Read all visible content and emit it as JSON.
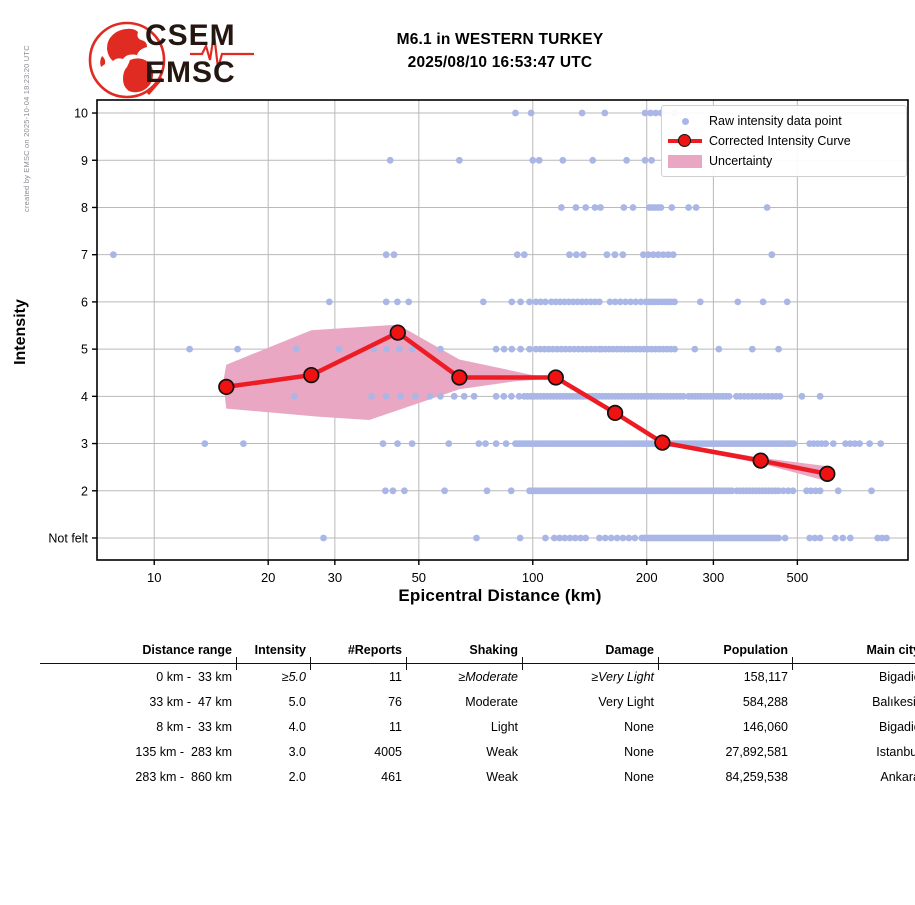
{
  "meta": {
    "created_by": "created by EMSC on 2025-10-04 18:23:20 UTC"
  },
  "logo": {
    "line1": "CSEM",
    "line2": "EMSC"
  },
  "title": {
    "line1": "M6.1 in WESTERN TURKEY",
    "line2": "2025/08/10 16:53:47 UTC"
  },
  "legend": {
    "raw": "Raw intensity data point",
    "curve": "Corrected Intensity Curve",
    "uncertainty": "Uncertainty"
  },
  "axes": {
    "ylabel": "Intensity",
    "xlabel": "Epicentral Distance (km)"
  },
  "chart_data": {
    "type": "scatter",
    "title": "M6.1 in WESTERN TURKEY 2025/08/10 16:53:47 UTC",
    "xlabel": "Epicentral Distance (km)",
    "ylabel": "Intensity",
    "x_scale": "log",
    "grid": true,
    "legend_position": "upper right",
    "x_range": [
      7.06,
      980
    ],
    "y_range": [
      0.534,
      10.276
    ],
    "x_ticks": [
      10,
      20,
      30,
      50,
      100,
      200,
      300,
      500
    ],
    "y_ticks": [
      {
        "value": 10,
        "label": "10"
      },
      {
        "value": 9,
        "label": "9"
      },
      {
        "value": 8,
        "label": "8"
      },
      {
        "value": 7,
        "label": "7"
      },
      {
        "value": 6,
        "label": "6"
      },
      {
        "value": 5,
        "label": "5"
      },
      {
        "value": 4,
        "label": "4"
      },
      {
        "value": 3,
        "label": "3"
      },
      {
        "value": 2,
        "label": "2"
      },
      {
        "value": 1,
        "label": "Not felt"
      }
    ],
    "colors": {
      "raw": "#aab7e6",
      "curve": "#ed1c24",
      "marker": "#ee1212",
      "band": "#e9a7c3",
      "grid": "#b9b9b9"
    },
    "corrected_curve": [
      [
        15.5,
        4.2
      ],
      [
        26,
        4.45
      ],
      [
        44,
        5.35
      ],
      [
        64,
        4.4
      ],
      [
        115,
        4.4
      ],
      [
        165,
        3.65
      ],
      [
        220,
        3.02
      ],
      [
        400,
        2.64
      ],
      [
        600,
        2.36
      ]
    ],
    "uncertainty_upper": [
      [
        15.2,
        4.3
      ],
      [
        15.5,
        4.67
      ],
      [
        26,
        5.4
      ],
      [
        44,
        5.52
      ],
      [
        64,
        4.78
      ],
      [
        100,
        4.45
      ],
      [
        115,
        4.42
      ],
      [
        165,
        3.7
      ],
      [
        220,
        3.06
      ],
      [
        400,
        2.7
      ],
      [
        600,
        2.52
      ]
    ],
    "uncertainty_lower": [
      [
        15.2,
        4.3
      ],
      [
        15.5,
        3.74
      ],
      [
        27,
        3.57
      ],
      [
        37,
        3.5
      ],
      [
        64,
        4.15
      ],
      [
        90,
        4.32
      ],
      [
        115,
        4.38
      ],
      [
        165,
        3.6
      ],
      [
        220,
        2.98
      ],
      [
        400,
        2.58
      ],
      [
        600,
        2.2
      ]
    ],
    "raw_points": [
      {
        "intensity": 10,
        "segments": [
          [
            90,
            90,
            1
          ],
          [
            99,
            99,
            1
          ],
          [
            135,
            135,
            1
          ],
          [
            155,
            155,
            1
          ],
          [
            198,
            218,
            4
          ],
          [
            237,
            237,
            1
          ]
        ]
      },
      {
        "intensity": 9,
        "segments": [
          [
            42,
            42,
            1
          ],
          [
            64,
            64,
            1
          ],
          [
            100,
            104,
            2
          ],
          [
            120,
            120,
            1
          ],
          [
            144,
            144,
            1
          ],
          [
            177,
            177,
            1
          ],
          [
            198,
            206,
            2
          ]
        ]
      },
      {
        "intensity": 8,
        "segments": [
          [
            119,
            119,
            1
          ],
          [
            130,
            130,
            1
          ],
          [
            138,
            138,
            1
          ],
          [
            146,
            151,
            2
          ],
          [
            174,
            174,
            1
          ],
          [
            184,
            184,
            1
          ],
          [
            203,
            218,
            5
          ],
          [
            233,
            233,
            1
          ],
          [
            258,
            258,
            1
          ],
          [
            270,
            270,
            1
          ],
          [
            416,
            416,
            1
          ]
        ]
      },
      {
        "intensity": 7,
        "segments": [
          [
            7.8,
            7.8,
            1
          ],
          [
            41,
            43,
            2
          ],
          [
            91,
            95,
            2
          ],
          [
            125,
            136,
            3
          ],
          [
            157,
            173,
            3
          ],
          [
            196,
            235,
            7
          ],
          [
            428,
            428,
            1
          ]
        ]
      },
      {
        "intensity": 6,
        "segments": [
          [
            29,
            29,
            1
          ],
          [
            41,
            47,
            3
          ],
          [
            74,
            74,
            1
          ],
          [
            88,
            98,
            3
          ],
          [
            102,
            108,
            3
          ],
          [
            112,
            150,
            12
          ],
          [
            160,
            193,
            7
          ],
          [
            199,
            237,
            10
          ],
          [
            277,
            277,
            1
          ],
          [
            348,
            348,
            1
          ],
          [
            406,
            406,
            1
          ],
          [
            470,
            470,
            1
          ]
        ]
      },
      {
        "intensity": 5,
        "segments": [
          [
            12.4,
            12.4,
            1
          ],
          [
            16.6,
            16.6,
            1
          ],
          [
            23.7,
            23.7,
            1
          ],
          [
            30.8,
            30.8,
            1
          ],
          [
            38,
            48,
            4
          ],
          [
            57,
            57,
            1
          ],
          [
            80,
            84,
            2
          ],
          [
            88,
            98,
            3
          ],
          [
            102,
            150,
            16
          ],
          [
            152,
            237,
            20
          ],
          [
            268,
            268,
            1
          ],
          [
            310,
            310,
            1
          ],
          [
            380,
            380,
            1
          ],
          [
            446,
            446,
            1
          ]
        ]
      },
      {
        "intensity": 4,
        "segments": [
          [
            23.5,
            23.5,
            1
          ],
          [
            37.5,
            53.5,
            5
          ],
          [
            57,
            57,
            1
          ],
          [
            62,
            70,
            3
          ],
          [
            80,
            92,
            4
          ],
          [
            95,
            250,
            50
          ],
          [
            258,
            330,
            14
          ],
          [
            345,
            450,
            12
          ],
          [
            514,
            514,
            1
          ],
          [
            574,
            574,
            1
          ]
        ]
      },
      {
        "intensity": 3,
        "segments": [
          [
            13.6,
            13.6,
            1
          ],
          [
            17.2,
            17.2,
            1
          ],
          [
            40.2,
            48,
            3
          ],
          [
            60,
            60,
            1
          ],
          [
            72,
            75,
            2
          ],
          [
            80,
            85,
            2
          ],
          [
            90,
            460,
            120
          ],
          [
            469,
            489,
            4
          ],
          [
            539,
            594,
            5
          ],
          [
            622,
            622,
            1
          ],
          [
            670,
            730,
            4
          ],
          [
            776,
            776,
            1
          ],
          [
            830,
            830,
            1
          ]
        ]
      },
      {
        "intensity": 2,
        "segments": [
          [
            40.8,
            40.8,
            1
          ],
          [
            42.7,
            42.7,
            1
          ],
          [
            45.8,
            45.8,
            1
          ],
          [
            58.5,
            58.5,
            1
          ],
          [
            75.7,
            75.7,
            1
          ],
          [
            87.7,
            87.7,
            1
          ],
          [
            98,
            336,
            80
          ],
          [
            346,
            446,
            14
          ],
          [
            459,
            487,
            3
          ],
          [
            529,
            574,
            4
          ],
          [
            641,
            641,
            1
          ],
          [
            785,
            785,
            1
          ]
        ]
      },
      {
        "intensity": 1,
        "segments": [
          [
            28,
            28,
            1
          ],
          [
            71,
            71,
            1
          ],
          [
            92.6,
            92.6,
            1
          ],
          [
            108,
            108,
            1
          ],
          [
            114,
            138,
            7
          ],
          [
            150,
            186,
            7
          ],
          [
            194,
            446,
            65
          ],
          [
            464,
            464,
            1
          ],
          [
            539,
            574,
            3
          ],
          [
            630,
            690,
            3
          ],
          [
            815,
            860,
            3
          ]
        ]
      }
    ]
  },
  "table": {
    "headers": [
      "Distance range",
      "Intensity",
      "#Reports",
      "Shaking",
      "Damage",
      "Population",
      "Main city"
    ],
    "rows": [
      {
        "cells": [
          "0 km -  33 km",
          "≥5.0",
          "11",
          "≥Moderate",
          "≥Very Light",
          "158,117",
          "Bigadiç"
        ],
        "italic_cells": [
          1,
          3,
          4
        ]
      },
      {
        "cells": [
          "33 km -  47 km",
          "5.0",
          "76",
          "Moderate",
          "Very Light",
          "584,288",
          "Balıkesir"
        ],
        "italic_cells": []
      },
      {
        "cells": [
          "8 km -  33 km",
          "4.0",
          "11",
          "Light",
          "None",
          "146,060",
          "Bigadiç"
        ],
        "italic_cells": []
      },
      {
        "cells": [
          "135 km -  283 km",
          "3.0",
          "4005",
          "Weak",
          "None",
          "27,892,581",
          "Istanbul"
        ],
        "italic_cells": []
      },
      {
        "cells": [
          "283 km -  860 km",
          "2.0",
          "461",
          "Weak",
          "None",
          "84,259,538",
          "Ankara"
        ],
        "italic_cells": []
      }
    ]
  }
}
